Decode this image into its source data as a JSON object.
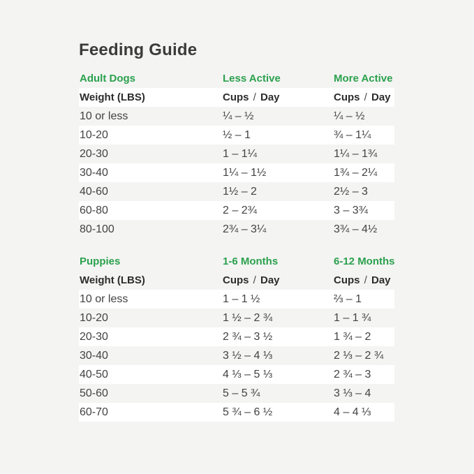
{
  "page": {
    "title": "Feeding Guide"
  },
  "colors": {
    "background": "#f4f4f3",
    "row_stripe": "#ffffff",
    "accent_green": "#2ba14d",
    "title_text": "#3b3b3b",
    "body_text": "#424242"
  },
  "tables": [
    {
      "id": "adult",
      "section_label": "Adult Dogs",
      "col2_label": "Less Active",
      "col3_label": "More Active",
      "header": [
        "Weight (LBS)",
        "Cups / Day",
        "Cups / Day"
      ],
      "rows": [
        [
          "10 or less",
          "¼ – ½",
          "¼ – ½"
        ],
        [
          "10-20",
          "½ – 1",
          "¾ – 1¼"
        ],
        [
          "20-30",
          "1 – 1¼",
          "1¼ – 1¾"
        ],
        [
          "30-40",
          "1¼ – 1½",
          "1¾ – 2¼"
        ],
        [
          "40-60",
          "1½ – 2",
          "2½ – 3"
        ],
        [
          "60-80",
          "2 – 2¾",
          "3 – 3¾"
        ],
        [
          "80-100",
          "2¾ – 3¼",
          "3¾ – 4½"
        ]
      ]
    },
    {
      "id": "puppies",
      "section_label": "Puppies",
      "col2_label": "1-6 Months",
      "col3_label": "6-12 Months",
      "header": [
        "Weight (LBS)",
        "Cups / Day",
        "Cups / Day"
      ],
      "rows": [
        [
          "10 or less",
          "1 – 1 ½",
          "⅔ – 1"
        ],
        [
          "10-20",
          "1 ½ – 2 ¾",
          "1 – 1 ¾"
        ],
        [
          "20-30",
          "2 ¾ – 3 ½",
          "1 ¾ – 2"
        ],
        [
          "30-40",
          "3 ½ – 4 ⅓",
          "2 ⅓ – 2 ¾"
        ],
        [
          "40-50",
          "4 ⅓ – 5 ⅓",
          "2 ¾ – 3"
        ],
        [
          "50-60",
          "5 – 5 ¾",
          "3 ⅓ – 4"
        ],
        [
          "60-70",
          "5 ¾ – 6 ½",
          "4 – 4 ⅓"
        ]
      ]
    }
  ]
}
